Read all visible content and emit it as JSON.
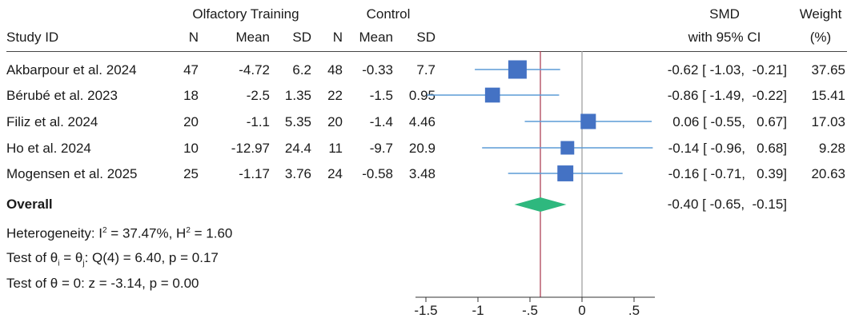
{
  "header": {
    "group1": "Olfactory Training",
    "group2": "Control",
    "study_id": "Study ID",
    "n1": "N",
    "mean1": "Mean",
    "sd1": "SD",
    "n2": "N",
    "mean2": "Mean",
    "sd2": "SD",
    "smd": "SMD",
    "ci": "with 95% CI",
    "weight": "Weight",
    "weight_unit": "(%)"
  },
  "rows": [
    {
      "study": "Akbarpour et al. 2024",
      "n1": "47",
      "mean1": "-4.72",
      "sd1": "6.2",
      "n2": "48",
      "mean2": "-0.33",
      "sd2": "7.7",
      "ci_text": "-0.62 [ -1.03,  -0.21]",
      "weight": "37.65"
    },
    {
      "study": "Bérubé et al. 2023",
      "n1": "18",
      "mean1": "-2.5",
      "sd1": "1.35",
      "n2": "22",
      "mean2": "-1.5",
      "sd2": "0.95",
      "ci_text": "-0.86 [ -1.49,  -0.22]",
      "weight": "15.41"
    },
    {
      "study": "Filiz et al. 2024",
      "n1": "20",
      "mean1": "-1.1",
      "sd1": "5.35",
      "n2": "20",
      "mean2": "-1.4",
      "sd2": "4.46",
      "ci_text": "0.06 [ -0.55,   0.67]",
      "weight": "17.03"
    },
    {
      "study": "Ho et al. 2024",
      "n1": "10",
      "mean1": "-12.97",
      "sd1": "24.4",
      "n2": "11",
      "mean2": "-9.7",
      "sd2": "20.9",
      "ci_text": "-0.14 [ -0.96,   0.68]",
      "weight": "9.28"
    },
    {
      "study": "Mogensen et al. 2025",
      "n1": "25",
      "mean1": "-1.17",
      "sd1": "3.76",
      "n2": "24",
      "mean2": "-0.58",
      "sd2": "3.48",
      "ci_text": "-0.16 [ -0.71,   0.39]",
      "weight": "20.63"
    }
  ],
  "overall": {
    "label": "Overall",
    "ci_text": "-0.40 [ -0.65,  -0.15]"
  },
  "stats": {
    "het_a": "Heterogeneity: I",
    "het_b": "2",
    "het_c": " = 37.47%, H",
    "het_d": "2",
    "het_e": " = 1.60",
    "q_a": "Test of θ",
    "q_b": "i",
    "q_c": " = θ",
    "q_d": "j",
    "q_e": ": Q(4) = 6.40, p = 0.17",
    "z": "Test of θ = 0: z = -3.14, p = 0.00"
  },
  "chart_data": {
    "type": "forest",
    "xlim": [
      -1.6,
      0.7
    ],
    "xticks": [
      -1.5,
      -1,
      -0.5,
      0,
      0.5
    ],
    "xtick_labels": [
      "-1.5",
      "-1",
      "-.5",
      "0",
      ".5"
    ],
    "studies": [
      {
        "name": "Akbarpour et al. 2024",
        "smd": -0.62,
        "lo": -1.03,
        "hi": -0.21,
        "weight": 37.65
      },
      {
        "name": "Bérubé et al. 2023",
        "smd": -0.86,
        "lo": -1.49,
        "hi": -0.22,
        "weight": 15.41
      },
      {
        "name": "Filiz et al. 2024",
        "smd": 0.06,
        "lo": -0.55,
        "hi": 0.67,
        "weight": 17.03
      },
      {
        "name": "Ho et al. 2024",
        "smd": -0.14,
        "lo": -0.96,
        "hi": 0.68,
        "weight": 9.28
      },
      {
        "name": "Mogensen et al. 2025",
        "smd": -0.16,
        "lo": -0.71,
        "hi": 0.39,
        "weight": 20.63
      }
    ],
    "overall": {
      "smd": -0.4,
      "lo": -0.65,
      "hi": -0.15
    },
    "reference_lines": [
      0,
      -0.4
    ],
    "colors": {
      "marker": "#4472C4",
      "ci": "#5b9bd5",
      "diamond": "#2eb87e",
      "overall_line": "#a8324a",
      "null_line": "#9a9a9a"
    }
  }
}
